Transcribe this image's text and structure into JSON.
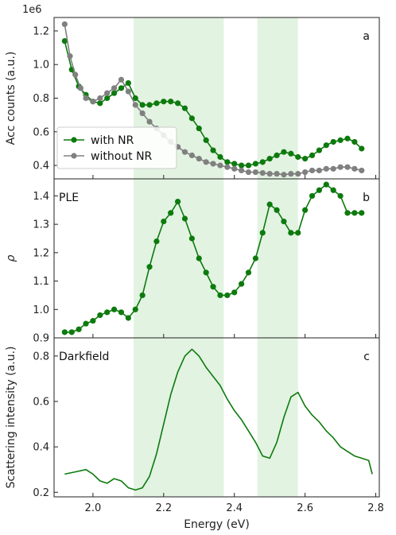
{
  "chart_data": [
    {
      "type": "line",
      "panel_letter": "a",
      "ylabel": "Acc counts (a.u.)",
      "offset_text": "1e6",
      "xlim": [
        1.89,
        2.81
      ],
      "ylim": [
        0.32,
        1.28
      ],
      "yticks": [
        0.4,
        0.6,
        0.8,
        1.0,
        1.2
      ],
      "ytick_labels": [
        "0.4",
        "0.6",
        "0.8",
        "1.0",
        "1.2"
      ],
      "legend_position": "lower-left",
      "shaded_regions": [
        [
          2.115,
          2.37
        ],
        [
          2.465,
          2.58
        ]
      ],
      "series": [
        {
          "name": "with NR",
          "color": "#0d7a0d",
          "x": [
            1.92,
            1.94,
            1.96,
            1.98,
            2.0,
            2.02,
            2.04,
            2.06,
            2.08,
            2.1,
            2.12,
            2.14,
            2.16,
            2.18,
            2.2,
            2.22,
            2.24,
            2.26,
            2.28,
            2.3,
            2.32,
            2.34,
            2.36,
            2.38,
            2.4,
            2.42,
            2.44,
            2.46,
            2.48,
            2.5,
            2.52,
            2.54,
            2.56,
            2.58,
            2.6,
            2.62,
            2.64,
            2.66,
            2.68,
            2.7,
            2.72,
            2.74,
            2.76
          ],
          "y": [
            1.14,
            0.97,
            0.87,
            0.82,
            0.78,
            0.77,
            0.8,
            0.83,
            0.86,
            0.89,
            0.8,
            0.76,
            0.76,
            0.77,
            0.78,
            0.78,
            0.77,
            0.74,
            0.68,
            0.62,
            0.55,
            0.49,
            0.45,
            0.42,
            0.41,
            0.4,
            0.4,
            0.41,
            0.42,
            0.44,
            0.46,
            0.48,
            0.47,
            0.45,
            0.44,
            0.46,
            0.49,
            0.52,
            0.54,
            0.55,
            0.56,
            0.54,
            0.5
          ]
        },
        {
          "name": "without NR",
          "color": "#808080",
          "x": [
            1.92,
            1.935,
            1.95,
            1.965,
            1.98,
            2.0,
            2.02,
            2.04,
            2.06,
            2.08,
            2.1,
            2.12,
            2.14,
            2.16,
            2.18,
            2.2,
            2.22,
            2.24,
            2.26,
            2.28,
            2.3,
            2.32,
            2.34,
            2.36,
            2.38,
            2.4,
            2.42,
            2.44,
            2.46,
            2.48,
            2.5,
            2.52,
            2.54,
            2.56,
            2.58,
            2.6,
            2.62,
            2.64,
            2.66,
            2.68,
            2.7,
            2.72,
            2.74,
            2.76
          ],
          "y": [
            1.24,
            1.05,
            0.94,
            0.86,
            0.8,
            0.78,
            0.8,
            0.83,
            0.86,
            0.91,
            0.84,
            0.76,
            0.71,
            0.66,
            0.62,
            0.58,
            0.54,
            0.51,
            0.48,
            0.46,
            0.44,
            0.42,
            0.41,
            0.4,
            0.39,
            0.38,
            0.37,
            0.36,
            0.36,
            0.355,
            0.35,
            0.35,
            0.345,
            0.35,
            0.35,
            0.36,
            0.37,
            0.37,
            0.38,
            0.38,
            0.39,
            0.39,
            0.38,
            0.37
          ]
        }
      ]
    },
    {
      "type": "line",
      "panel_letter": "b",
      "panel_label": "PLE",
      "ylabel": "ρ",
      "xlim": [
        1.89,
        2.81
      ],
      "ylim": [
        0.9,
        1.46
      ],
      "yticks": [
        0.9,
        1.0,
        1.1,
        1.2,
        1.3,
        1.4
      ],
      "ytick_labels": [
        "0.9",
        "1.0",
        "1.1",
        "1.2",
        "1.3",
        "1.4"
      ],
      "shaded_regions": [
        [
          2.115,
          2.37
        ],
        [
          2.465,
          2.58
        ]
      ],
      "series": [
        {
          "color": "#0d7a0d",
          "x": [
            1.92,
            1.94,
            1.96,
            1.98,
            2.0,
            2.02,
            2.04,
            2.06,
            2.08,
            2.1,
            2.12,
            2.14,
            2.16,
            2.18,
            2.2,
            2.22,
            2.24,
            2.26,
            2.28,
            2.3,
            2.32,
            2.34,
            2.36,
            2.38,
            2.4,
            2.42,
            2.44,
            2.46,
            2.48,
            2.5,
            2.52,
            2.54,
            2.56,
            2.58,
            2.6,
            2.62,
            2.64,
            2.66,
            2.68,
            2.7,
            2.72,
            2.74,
            2.76
          ],
          "y": [
            0.92,
            0.92,
            0.93,
            0.95,
            0.96,
            0.98,
            0.99,
            1.0,
            0.99,
            0.97,
            1.0,
            1.05,
            1.15,
            1.24,
            1.31,
            1.34,
            1.38,
            1.32,
            1.25,
            1.18,
            1.13,
            1.08,
            1.05,
            1.05,
            1.06,
            1.09,
            1.13,
            1.18,
            1.27,
            1.37,
            1.35,
            1.31,
            1.27,
            1.27,
            1.35,
            1.4,
            1.42,
            1.44,
            1.42,
            1.4,
            1.34,
            1.34,
            1.34
          ]
        }
      ]
    },
    {
      "type": "line",
      "panel_letter": "c",
      "panel_label": "Darkfield",
      "xlabel": "Energy (eV)",
      "ylabel": "Scattering intensity (a.u.)",
      "xlim": [
        1.89,
        2.81
      ],
      "ylim": [
        0.18,
        0.88
      ],
      "xticks": [
        2.0,
        2.2,
        2.4,
        2.6,
        2.8
      ],
      "xtick_labels": [
        "2.0",
        "2.2",
        "2.4",
        "2.6",
        "2.8"
      ],
      "yticks": [
        0.2,
        0.4,
        0.6,
        0.8
      ],
      "ytick_labels": [
        "0.2",
        "0.4",
        "0.6",
        "0.8"
      ],
      "shaded_regions": [
        [
          2.115,
          2.37
        ],
        [
          2.465,
          2.58
        ]
      ],
      "series": [
        {
          "color": "#0d7a0d",
          "x": [
            1.92,
            1.95,
            1.98,
            2.0,
            2.02,
            2.04,
            2.06,
            2.08,
            2.1,
            2.12,
            2.14,
            2.16,
            2.18,
            2.2,
            2.22,
            2.24,
            2.26,
            2.28,
            2.3,
            2.32,
            2.34,
            2.36,
            2.38,
            2.4,
            2.42,
            2.44,
            2.46,
            2.48,
            2.5,
            2.52,
            2.54,
            2.56,
            2.58,
            2.6,
            2.62,
            2.64,
            2.66,
            2.68,
            2.7,
            2.72,
            2.74,
            2.76,
            2.78,
            2.79
          ],
          "y": [
            0.28,
            0.29,
            0.3,
            0.28,
            0.25,
            0.24,
            0.26,
            0.25,
            0.22,
            0.21,
            0.22,
            0.27,
            0.37,
            0.5,
            0.63,
            0.73,
            0.8,
            0.83,
            0.8,
            0.75,
            0.71,
            0.67,
            0.61,
            0.56,
            0.52,
            0.47,
            0.42,
            0.36,
            0.35,
            0.42,
            0.53,
            0.62,
            0.64,
            0.58,
            0.54,
            0.51,
            0.47,
            0.44,
            0.4,
            0.38,
            0.36,
            0.35,
            0.34,
            0.28
          ]
        }
      ]
    }
  ]
}
